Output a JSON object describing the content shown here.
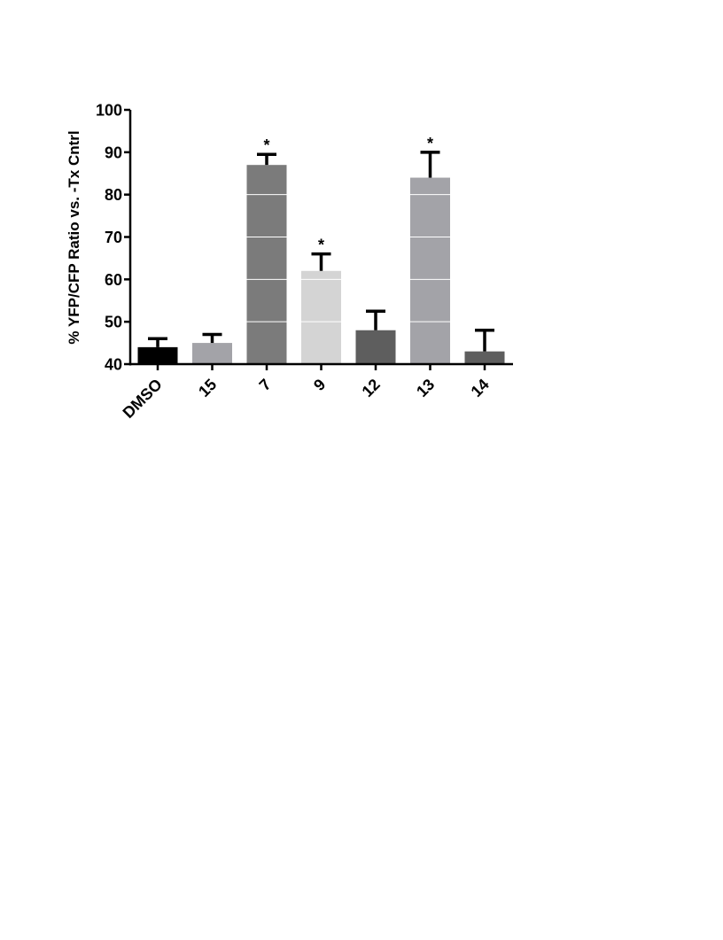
{
  "chart_data": {
    "type": "bar",
    "title": "",
    "xlabel": "",
    "ylabel": "% YFP/CFP Ratio vs. -Tx  Cntrl",
    "ylim": [
      40,
      100
    ],
    "yticks": [
      40,
      50,
      60,
      70,
      80,
      90,
      100
    ],
    "grid": false,
    "categories": [
      "DMSO",
      "15",
      "7",
      "9",
      "12",
      "13",
      "14"
    ],
    "values": [
      44,
      45,
      87,
      62,
      48,
      84,
      43
    ],
    "error_upper": [
      46,
      47,
      89.5,
      66,
      52.5,
      90,
      48
    ],
    "significance": [
      "",
      "",
      "*",
      "*",
      "",
      "*",
      ""
    ],
    "colors": [
      "#000000",
      "#a3a3a8",
      "#7b7b7b",
      "#d4d4d4",
      "#5e5e5e",
      "#a3a3a8",
      "#5e5e5e"
    ]
  }
}
